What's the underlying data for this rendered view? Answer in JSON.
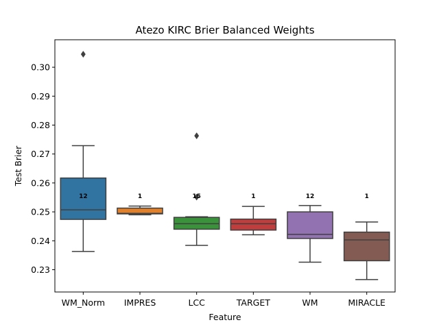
{
  "chart_data": {
    "type": "box",
    "title": "Atezo KIRC Brier Balanced Weights",
    "xlabel": "Feature",
    "ylabel": "Test Brier",
    "ylim": [
      0.2223,
      0.3095
    ],
    "yticks": [
      0.23,
      0.24,
      0.25,
      0.26,
      0.27,
      0.28,
      0.29,
      0.3
    ],
    "ytick_labels": [
      "0.23",
      "0.24",
      "0.25",
      "0.26",
      "0.27",
      "0.28",
      "0.29",
      "0.30"
    ],
    "grid": false,
    "categories": [
      "WM_Norm",
      "IMPRES",
      "LCC",
      "TARGET",
      "WM",
      "MIRACLE"
    ],
    "boxes": [
      {
        "name": "WM_Norm",
        "color": "#3274a1",
        "whisker_low": 0.2363,
        "q1": 0.2474,
        "median": 0.2507,
        "q3": 0.2617,
        "whisker_high": 0.2729,
        "outliers": [
          0.3045
        ],
        "count_label": "12"
      },
      {
        "name": "IMPRES",
        "color": "#e1812c",
        "whisker_low": 0.249,
        "q1": 0.2493,
        "median": 0.2495,
        "q3": 0.2513,
        "whisker_high": 0.252,
        "outliers": [],
        "count_label": "1"
      },
      {
        "name": "LCC",
        "color": "#3a923a",
        "whisker_low": 0.2384,
        "q1": 0.244,
        "median": 0.2459,
        "q3": 0.2481,
        "whisker_high": 0.2483,
        "outliers": [
          0.2763,
          0.2551
        ],
        "count_label": "15"
      },
      {
        "name": "TARGET",
        "color": "#c03d3e",
        "whisker_low": 0.2421,
        "q1": 0.2437,
        "median": 0.2459,
        "q3": 0.2475,
        "whisker_high": 0.2519,
        "outliers": [],
        "count_label": "1"
      },
      {
        "name": "WM",
        "color": "#9372b2",
        "whisker_low": 0.2326,
        "q1": 0.2408,
        "median": 0.2422,
        "q3": 0.25,
        "whisker_high": 0.2522,
        "outliers": [],
        "count_label": "12"
      },
      {
        "name": "MIRACLE",
        "color": "#845b53",
        "whisker_low": 0.2266,
        "q1": 0.2331,
        "median": 0.2403,
        "q3": 0.243,
        "whisker_high": 0.2465,
        "outliers": [],
        "count_label": "1"
      }
    ],
    "count_label_y": 0.2555
  }
}
